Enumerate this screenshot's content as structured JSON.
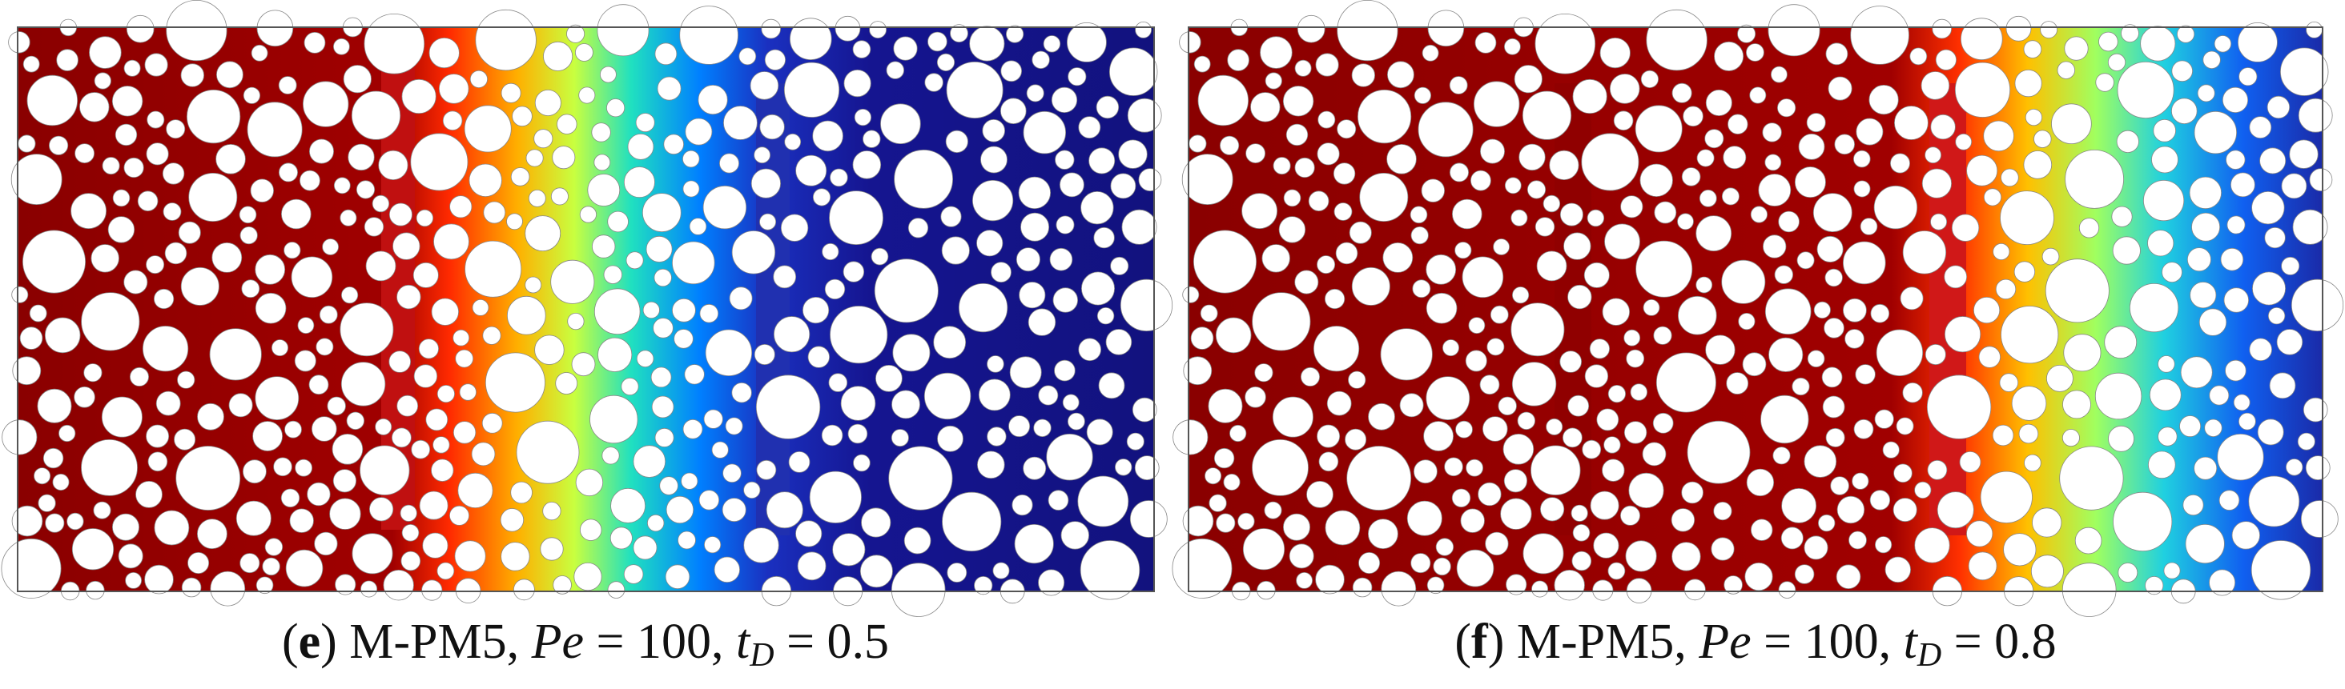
{
  "panels": [
    {
      "caption": [
        "(",
        "e",
        ") M-PM5, ",
        "Pe",
        " = 100, ",
        "t",
        "D",
        " = 0.5"
      ]
    },
    {
      "caption": [
        "(",
        "f",
        ") M-PM5, ",
        "Pe",
        " = 100, ",
        "t",
        "D",
        " = 0.8"
      ]
    }
  ]
}
